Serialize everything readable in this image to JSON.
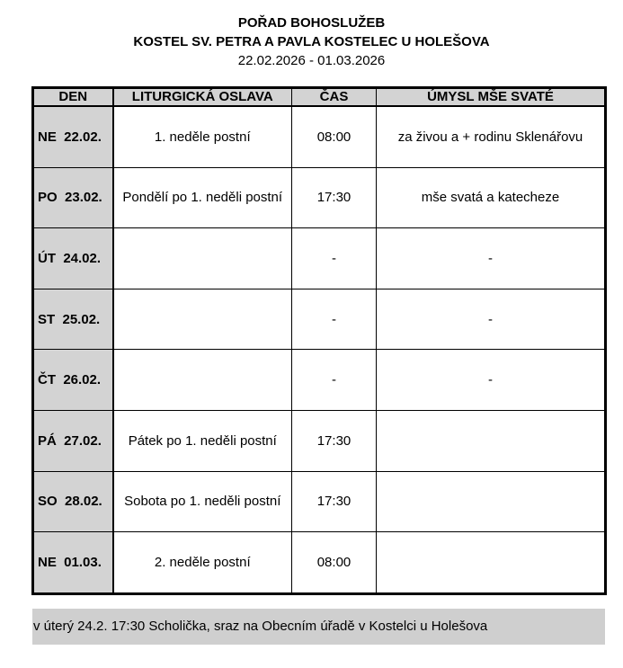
{
  "header": {
    "title": "POŘAD BOHOSLUŽEB",
    "subtitle": "KOSTEL SV. PETRA A PAVLA KOSTELEC U HOLEŠOVA",
    "date_range": "22.02.2026 - 01.03.2026"
  },
  "table": {
    "columns": [
      "DEN",
      "LITURGICKÁ OSLAVA",
      "ČAS",
      "ÚMYSL MŠE SVATÉ"
    ],
    "rows": [
      {
        "day": "NE  22.02.",
        "celebration": "1. neděle postní",
        "time": "08:00",
        "intention": "za živou a + rodinu Sklenářovu"
      },
      {
        "day": "PO  23.02.",
        "celebration": "Pondělí po 1. neděli postní",
        "time": "17:30",
        "intention": "mše svatá a katecheze"
      },
      {
        "day": "ÚT  24.02.",
        "celebration": "",
        "time": "-",
        "intention": "-"
      },
      {
        "day": "ST  25.02.",
        "celebration": "",
        "time": "-",
        "intention": "-"
      },
      {
        "day": "ČT  26.02.",
        "celebration": "",
        "time": "-",
        "intention": "-"
      },
      {
        "day": "PÁ  27.02.",
        "celebration": "Pátek po 1. neděli postní",
        "time": "17:30",
        "intention": ""
      },
      {
        "day": "SO  28.02.",
        "celebration": "Sobota po 1. neděli postní",
        "time": "17:30",
        "intention": ""
      },
      {
        "day": "NE  01.03.",
        "celebration": "2. neděle postní",
        "time": "08:00",
        "intention": ""
      }
    ]
  },
  "note": "v úterý 24.2. 17:30 Scholička, sraz na Obecním úřadě v Kostelci u Holešova",
  "colors": {
    "shade": "#d3d3d3",
    "note_bg": "#cfcfcf"
  }
}
